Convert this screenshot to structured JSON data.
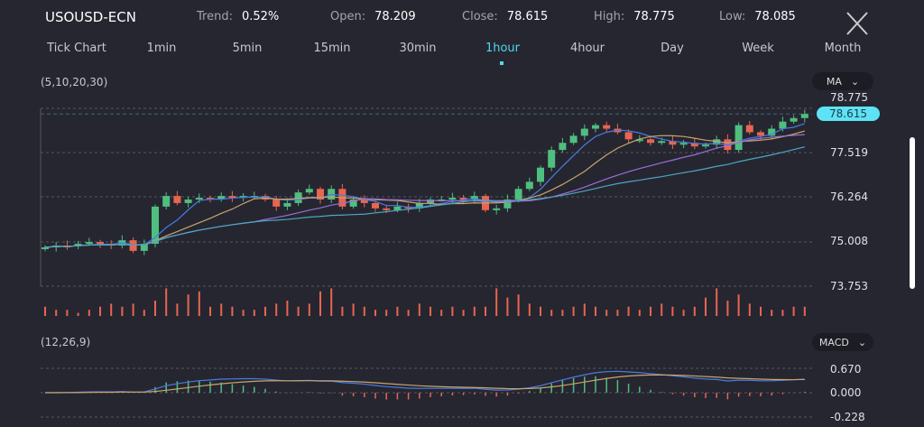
{
  "header": {
    "symbol": "USOUSD-ECN",
    "trend_label": "Trend:",
    "trend": "0.52%",
    "open_label": "Open:",
    "open": "78.209",
    "close_label": "Close:",
    "close": "78.615",
    "high_label": "High:",
    "high": "78.775",
    "low_label": "Low:",
    "low": "78.085"
  },
  "tabs": [
    {
      "label": "Tick Chart"
    },
    {
      "label": "1min"
    },
    {
      "label": "5min"
    },
    {
      "label": "15min"
    },
    {
      "label": "30min"
    },
    {
      "label": "1hour",
      "active": true
    },
    {
      "label": "4hour"
    },
    {
      "label": "Day"
    },
    {
      "label": "Week"
    },
    {
      "label": "Month"
    }
  ],
  "ma": {
    "params": "(5,10,20,30)",
    "selector": "MA"
  },
  "macd": {
    "params": "(12,26,9)",
    "selector": "MACD",
    "ticks": [
      "0.670",
      "0.000",
      "-0.228"
    ]
  },
  "colors": {
    "up": "#4fbf7f",
    "down": "#e8664f",
    "accent": "#4fd6ee",
    "ma5": "#4a7be0",
    "ma10": "#c9a56a",
    "ma20": "#9a6fd8",
    "ma30": "#4aa8c0"
  },
  "chart_data": {
    "type": "candlestick",
    "price_ticks": [
      "78.775",
      "77.519",
      "76.264",
      "75.008",
      "73.753"
    ],
    "current_price": "78.615",
    "ylim": [
      73.753,
      78.775
    ],
    "close": [
      74.85,
      74.9,
      74.88,
      74.95,
      75.0,
      74.95,
      74.9,
      75.05,
      74.75,
      74.95,
      76.0,
      76.3,
      76.1,
      76.2,
      76.25,
      76.2,
      76.3,
      76.25,
      76.3,
      76.3,
      76.2,
      76.0,
      76.1,
      76.4,
      76.5,
      76.2,
      76.5,
      76.0,
      76.2,
      76.1,
      75.95,
      75.9,
      76.0,
      75.95,
      76.1,
      76.2,
      76.2,
      76.25,
      76.2,
      76.3,
      75.9,
      75.95,
      76.2,
      76.5,
      76.7,
      77.1,
      77.6,
      77.8,
      78.0,
      78.2,
      78.3,
      78.2,
      78.1,
      77.9,
      77.9,
      77.8,
      77.85,
      77.75,
      77.8,
      77.7,
      77.75,
      77.9,
      77.6,
      78.3,
      78.1,
      78.0,
      78.2,
      78.4,
      78.5,
      78.615
    ],
    "volume": [
      3,
      2,
      2,
      1,
      2,
      3,
      4,
      3,
      4,
      2,
      5,
      9,
      4,
      7,
      8,
      3,
      4,
      3,
      2,
      2,
      3,
      4,
      5,
      3,
      4,
      8,
      9,
      3,
      4,
      3,
      2,
      2,
      3,
      2,
      4,
      3,
      2,
      3,
      2,
      3,
      3,
      9,
      6,
      7,
      4,
      3,
      2,
      2,
      3,
      4,
      3,
      2,
      2,
      3,
      2,
      3,
      4,
      3,
      2,
      3,
      6,
      9,
      5,
      7,
      4,
      3,
      2,
      2,
      3,
      3
    ]
  }
}
